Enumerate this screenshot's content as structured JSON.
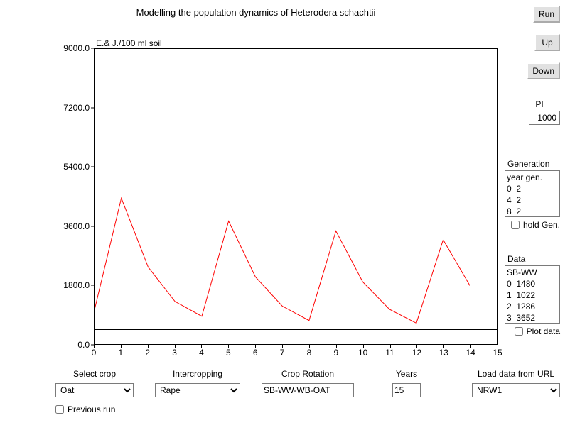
{
  "title": "Modelling the population dynamics of Heterodera schachtii",
  "chart": {
    "type": "line",
    "y_axis_label": "E.& J./100 ml soil",
    "xlim": [
      0,
      15
    ],
    "ylim": [
      0,
      9000
    ],
    "yticks": [
      0.0,
      1800.0,
      3600.0,
      5400.0,
      7200.0,
      9000.0
    ],
    "xticks": [
      0,
      1,
      2,
      3,
      4,
      5,
      6,
      7,
      8,
      9,
      10,
      11,
      12,
      13,
      14,
      15
    ],
    "line_color": "#ff0000",
    "line_width": 1,
    "threshold_y": 500,
    "threshold_color": "#000000",
    "border_color": "#000000",
    "background_color": "#ffffff",
    "series_x": [
      0,
      1,
      2,
      3,
      4,
      5,
      6,
      7,
      8,
      9,
      10,
      11,
      12,
      13,
      14
    ],
    "series_y": [
      1050,
      4450,
      2350,
      1300,
      850,
      3750,
      2050,
      1160,
      720,
      3450,
      1900,
      1060,
      640,
      3180,
      1780
    ]
  },
  "buttons": {
    "run": "Run",
    "up": "Up",
    "down": "Down"
  },
  "pi": {
    "label": "PI",
    "value": "1000"
  },
  "generation": {
    "label": "Generation",
    "header": "year gen.",
    "rows": [
      "0  2",
      "4  2",
      "8  2"
    ],
    "hold_label": "hold Gen.",
    "hold_checked": false
  },
  "data_panel": {
    "label": "Data",
    "header": "SB-WW",
    "rows": [
      "0  1480",
      "1  1022",
      "2  1286",
      "3  3652"
    ],
    "plot_label": "Plot data",
    "plot_checked": false
  },
  "bottom": {
    "select_crop": {
      "label": "Select crop",
      "value": "Oat"
    },
    "intercropping": {
      "label": "Intercropping",
      "value": "Rape"
    },
    "crop_rotation": {
      "label": "Crop Rotation",
      "value": "SB-WW-WB-OAT"
    },
    "years": {
      "label": "Years",
      "value": "15"
    },
    "load_url": {
      "label": "Load data from URL",
      "value": "NRW1"
    },
    "previous_run": {
      "label": "Previous run",
      "checked": false
    }
  }
}
